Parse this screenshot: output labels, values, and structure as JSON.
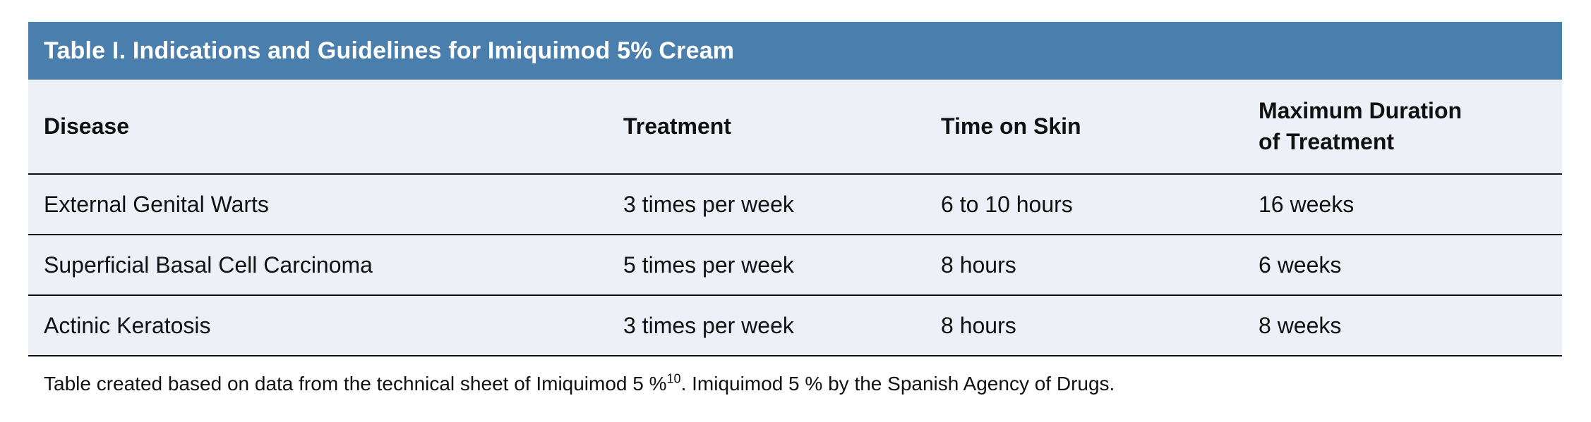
{
  "table": {
    "title": "Table I. Indications and Guidelines for Imiquimod 5% Cream",
    "columns": [
      "Disease",
      "Treatment",
      "Time on Skin",
      "Maximum Duration\nof Treatment"
    ],
    "rows": [
      [
        "External Genital Warts",
        "3 times per week",
        "6 to 10 hours",
        "16 weeks"
      ],
      [
        "Superficial Basal Cell Carcinoma",
        "5 times per week",
        "8 hours",
        "6 weeks"
      ],
      [
        "Actinic Keratosis",
        "3 times per week",
        "8 hours",
        "8 weeks"
      ]
    ]
  },
  "footnote": {
    "before_sup": "Table created based on data from the technical sheet of Imiquimod 5 %",
    "sup": "10",
    "after_sup": ". Imiquimod 5 % by the Spanish Agency of Drugs."
  },
  "colors": {
    "title_bar_bg": "#4a7ead",
    "title_text": "#ffffff",
    "table_body_bg": "#edf0f7",
    "row_border": "#0f1016",
    "body_text": "#111111"
  }
}
